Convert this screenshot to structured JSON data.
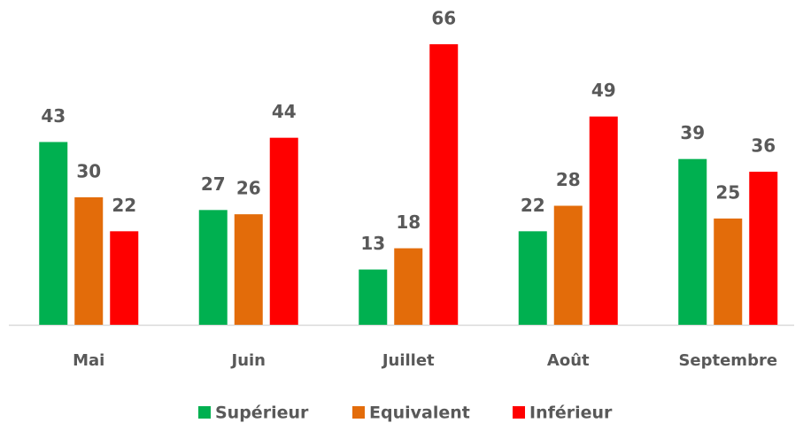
{
  "chart_data": {
    "type": "bar",
    "categories": [
      "Mai",
      "Juin",
      "Juillet",
      "Août",
      "Septembre"
    ],
    "series": [
      {
        "name": "Supérieur",
        "color": "#00b050",
        "values": [
          43,
          27,
          13,
          22,
          39
        ]
      },
      {
        "name": "Equivalent",
        "color": "#e36c0a",
        "values": [
          30,
          26,
          18,
          28,
          25
        ]
      },
      {
        "name": "Inférieur",
        "color": "#ff0000",
        "values": [
          22,
          44,
          66,
          49,
          36
        ]
      }
    ]
  }
}
